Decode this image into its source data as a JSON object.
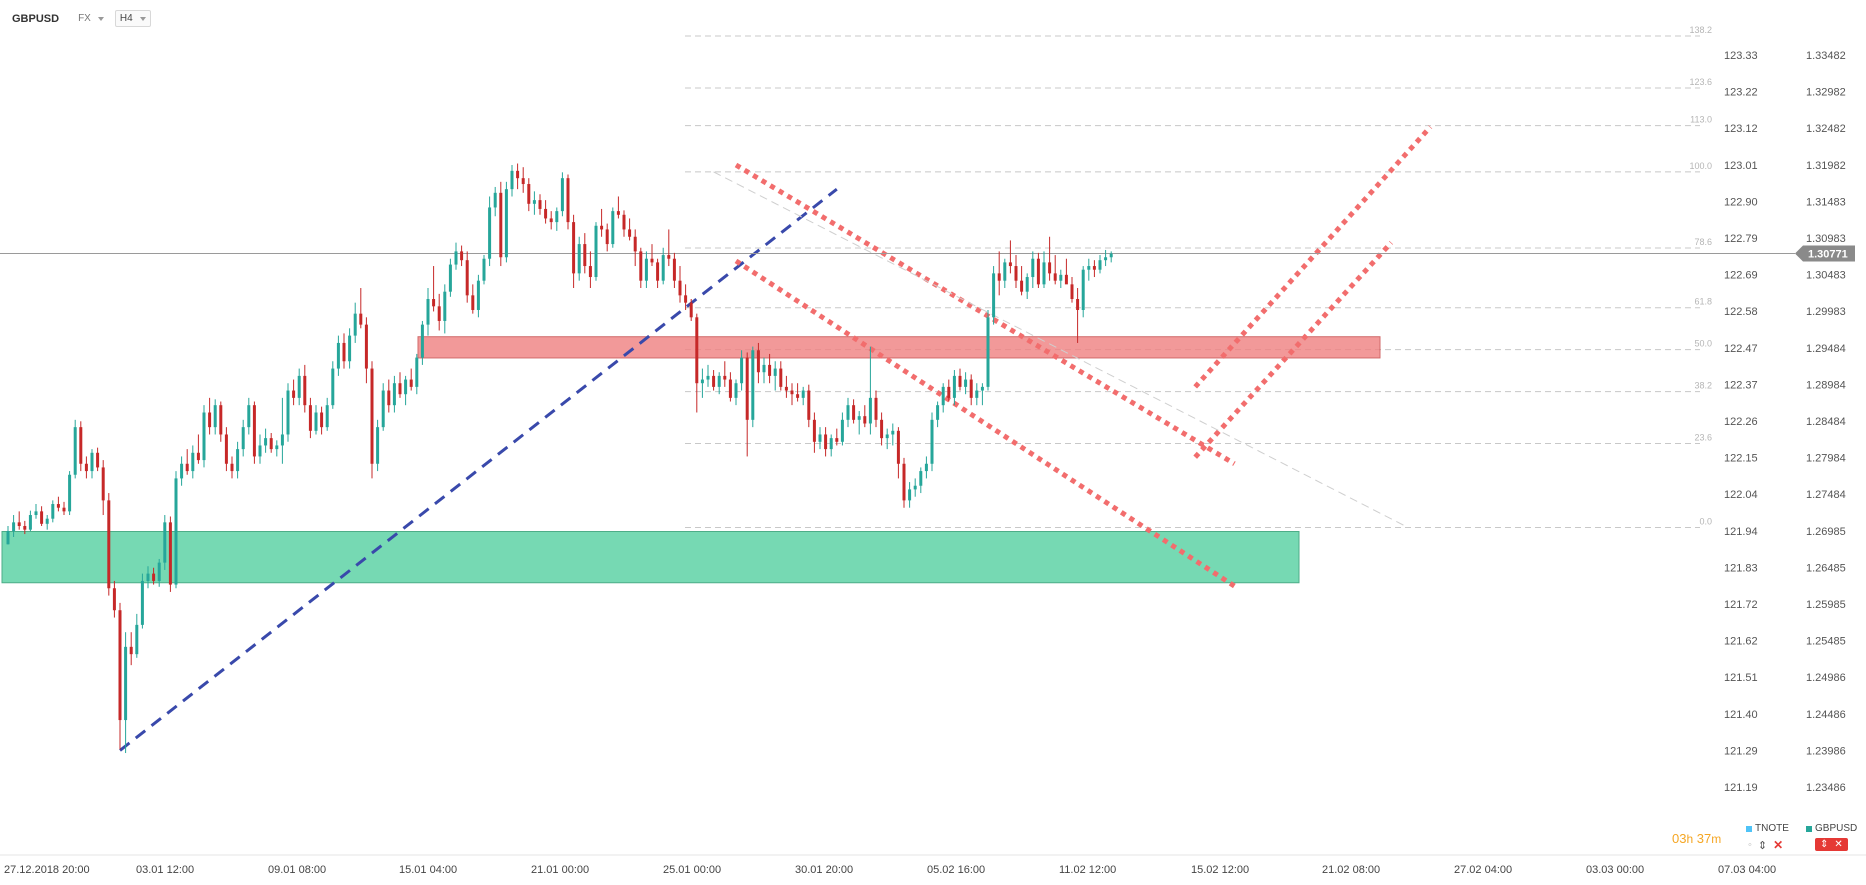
{
  "header": {
    "symbol": "GBPUSD",
    "market": "FX",
    "interval": "H4"
  },
  "timer": {
    "hours": "03",
    "h": "h",
    "minutes": "37",
    "m": "m"
  },
  "legend": {
    "tnote": "TNOTE",
    "gbpusd": "GBPUSD",
    "tnote_color": "#4fc3f7",
    "gbpusd_color": "#26a69a"
  },
  "colors": {
    "up": "#26a69a",
    "down": "#c62828",
    "support_zone": "#5fd3a6",
    "resistance_zone": "#f08080",
    "trend_blue": "#3949ab",
    "channel_red": "#f26d6d",
    "grid": "#c8c8c8",
    "current_price_bg": "#8a8a8a"
  },
  "chart_data": {
    "type": "candlestick",
    "symbol": "GBPUSD",
    "interval": "H4",
    "right_axis_ticks": [
      "1.33482",
      "1.32982",
      "1.32482",
      "1.31982",
      "1.31483",
      "1.30983",
      "1.30483",
      "1.29983",
      "1.29484",
      "1.28984",
      "1.28484",
      "1.27984",
      "1.27484",
      "1.26985",
      "1.26485",
      "1.25985",
      "1.25485",
      "1.24986",
      "1.24486",
      "1.23986",
      "1.23486"
    ],
    "left_axis_ticks": [
      "123.33",
      "123.22",
      "123.12",
      "123.01",
      "122.90",
      "122.79",
      "122.69",
      "122.58",
      "122.47",
      "122.37",
      "122.26",
      "122.15",
      "122.04",
      "121.94",
      "121.83",
      "121.72",
      "121.62",
      "121.51",
      "121.40",
      "121.29",
      "121.19"
    ],
    "x_ticks": [
      "27.12.2018  20:00",
      "03.01  12:00",
      "09.01  08:00",
      "15.01  04:00",
      "21.01  00:00",
      "25.01  00:00",
      "30.01  20:00",
      "05.02  16:00",
      "11.02  12:00",
      "15.02  12:00",
      "21.02  08:00",
      "27.02  04:00",
      "03.03  00:00",
      "07.03  04:00"
    ],
    "ylim": [
      1.22986,
      1.33682
    ],
    "current_price": "1.30771",
    "current_price_value": 1.30771,
    "fibonacci_levels": [
      {
        "label": "138.2",
        "price": 1.33742
      },
      {
        "label": "123.6",
        "price": 1.33031
      },
      {
        "label": "113.0",
        "price": 1.32517
      },
      {
        "label": "100.0",
        "price": 1.31886
      },
      {
        "label": "78.6",
        "price": 1.30847
      },
      {
        "label": "61.8",
        "price": 1.30031
      },
      {
        "label": "50.0",
        "price": 1.29458
      },
      {
        "label": "38.2",
        "price": 1.28885
      },
      {
        "label": "23.6",
        "price": 1.28176
      },
      {
        "label": "0.0",
        "price": 1.2703
      }
    ],
    "zones": [
      {
        "name": "support",
        "from_price": 1.26275,
        "to_price": 1.26975
      },
      {
        "name": "resistance",
        "from_price": 1.29345,
        "to_price": 1.29635
      }
    ],
    "candles": [
      [
        1.268,
        1.2705,
        1.268,
        1.2698
      ],
      [
        1.2698,
        1.272,
        1.269,
        1.271
      ],
      [
        1.271,
        1.2725,
        1.27,
        1.2705
      ],
      [
        1.2705,
        1.2712,
        1.2694,
        1.27
      ],
      [
        1.27,
        1.2726,
        1.2698,
        1.272
      ],
      [
        1.272,
        1.2735,
        1.2715,
        1.2725
      ],
      [
        1.2725,
        1.2732,
        1.2705,
        1.2708
      ],
      [
        1.2708,
        1.272,
        1.27,
        1.2715
      ],
      [
        1.2715,
        1.274,
        1.271,
        1.2735
      ],
      [
        1.2735,
        1.2745,
        1.2725,
        1.273
      ],
      [
        1.273,
        1.2738,
        1.272,
        1.2725
      ],
      [
        1.2725,
        1.278,
        1.272,
        1.2775
      ],
      [
        1.2775,
        1.285,
        1.277,
        1.284
      ],
      [
        1.284,
        1.2848,
        1.278,
        1.279
      ],
      [
        1.279,
        1.28,
        1.277,
        1.278
      ],
      [
        1.278,
        1.281,
        1.277,
        1.2805
      ],
      [
        1.2805,
        1.2812,
        1.278,
        1.2785
      ],
      [
        1.2785,
        1.2795,
        1.272,
        1.274
      ],
      [
        1.274,
        1.275,
        1.261,
        1.262
      ],
      [
        1.262,
        1.263,
        1.258,
        1.259
      ],
      [
        1.259,
        1.26,
        1.24,
        1.244
      ],
      [
        1.244,
        1.256,
        1.2395,
        1.254
      ],
      [
        1.254,
        1.256,
        1.2515,
        1.253
      ],
      [
        1.253,
        1.2585,
        1.2525,
        1.257
      ],
      [
        1.257,
        1.264,
        1.2565,
        1.263
      ],
      [
        1.263,
        1.265,
        1.262,
        1.264
      ],
      [
        1.264,
        1.2648,
        1.2625,
        1.263
      ],
      [
        1.263,
        1.266,
        1.2622,
        1.2655
      ],
      [
        1.2655,
        1.272,
        1.2645,
        1.271
      ],
      [
        1.271,
        1.2718,
        1.2615,
        1.2625
      ],
      [
        1.2625,
        1.278,
        1.262,
        1.277
      ],
      [
        1.277,
        1.28,
        1.276,
        1.279
      ],
      [
        1.279,
        1.281,
        1.2775,
        1.278
      ],
      [
        1.278,
        1.2815,
        1.277,
        1.2805
      ],
      [
        1.2805,
        1.283,
        1.279,
        1.2795
      ],
      [
        1.2795,
        1.287,
        1.2785,
        1.286
      ],
      [
        1.286,
        1.288,
        1.283,
        1.284
      ],
      [
        1.284,
        1.2878,
        1.283,
        1.287
      ],
      [
        1.287,
        1.2875,
        1.282,
        1.283
      ],
      [
        1.283,
        1.284,
        1.278,
        1.279
      ],
      [
        1.279,
        1.28,
        1.277,
        1.278
      ],
      [
        1.278,
        1.282,
        1.277,
        1.281
      ],
      [
        1.281,
        1.285,
        1.28,
        1.284
      ],
      [
        1.284,
        1.288,
        1.283,
        1.287
      ],
      [
        1.287,
        1.2875,
        1.279,
        1.28
      ],
      [
        1.28,
        1.283,
        1.279,
        1.2815
      ],
      [
        1.2815,
        1.2838,
        1.2805,
        1.2825
      ],
      [
        1.2825,
        1.2832,
        1.2805,
        1.281
      ],
      [
        1.281,
        1.2822,
        1.28,
        1.2815
      ],
      [
        1.2815,
        1.288,
        1.279,
        1.283
      ],
      [
        1.283,
        1.29,
        1.282,
        1.289
      ],
      [
        1.289,
        1.2905,
        1.287,
        1.288
      ],
      [
        1.288,
        1.292,
        1.287,
        1.291
      ],
      [
        1.291,
        1.2925,
        1.286,
        1.287
      ],
      [
        1.287,
        1.288,
        1.2825,
        1.2835
      ],
      [
        1.2835,
        1.287,
        1.283,
        1.286
      ],
      [
        1.286,
        1.2868,
        1.283,
        1.284
      ],
      [
        1.284,
        1.288,
        1.2835,
        1.287
      ],
      [
        1.287,
        1.293,
        1.2865,
        1.292
      ],
      [
        1.292,
        1.2965,
        1.291,
        1.2955
      ],
      [
        1.2955,
        1.2968,
        1.292,
        1.293
      ],
      [
        1.293,
        1.2975,
        1.292,
        1.2965
      ],
      [
        1.2965,
        1.301,
        1.2955,
        1.2995
      ],
      [
        1.2995,
        1.303,
        1.2975,
        1.298
      ],
      [
        1.298,
        1.299,
        1.29,
        1.292
      ],
      [
        1.292,
        1.293,
        1.277,
        1.279
      ],
      [
        1.279,
        1.285,
        1.278,
        1.284
      ],
      [
        1.284,
        1.29,
        1.2835,
        1.289
      ],
      [
        1.289,
        1.2905,
        1.286,
        1.287
      ],
      [
        1.287,
        1.291,
        1.286,
        1.29
      ],
      [
        1.29,
        1.2915,
        1.288,
        1.2885
      ],
      [
        1.2885,
        1.291,
        1.287,
        1.2905
      ],
      [
        1.2905,
        1.292,
        1.289,
        1.2895
      ],
      [
        1.2895,
        1.294,
        1.2885,
        1.2935
      ],
      [
        1.2935,
        1.2985,
        1.2925,
        1.298
      ],
      [
        1.298,
        1.303,
        1.2965,
        1.3015
      ],
      [
        1.3015,
        1.306,
        1.2998,
        1.3005
      ],
      [
        1.3005,
        1.3022,
        1.2972,
        1.2985
      ],
      [
        1.2985,
        1.3035,
        1.2968,
        1.3025
      ],
      [
        1.3025,
        1.307,
        1.3018,
        1.3062
      ],
      [
        1.3062,
        1.3092,
        1.3055,
        1.308
      ],
      [
        1.308,
        1.3088,
        1.306,
        1.3068
      ],
      [
        1.3068,
        1.308,
        1.301,
        1.302
      ],
      [
        1.302,
        1.3035,
        1.2995,
        1.3
      ],
      [
        1.3,
        1.3048,
        1.299,
        1.304
      ],
      [
        1.304,
        1.3075,
        1.3035,
        1.307
      ],
      [
        1.307,
        1.3155,
        1.306,
        1.314
      ],
      [
        1.314,
        1.3168,
        1.3128,
        1.316
      ],
      [
        1.316,
        1.3175,
        1.306,
        1.3072
      ],
      [
        1.3072,
        1.3175,
        1.3065,
        1.3165
      ],
      [
        1.3165,
        1.3198,
        1.3155,
        1.319
      ],
      [
        1.319,
        1.32,
        1.3165,
        1.318
      ],
      [
        1.318,
        1.3195,
        1.316,
        1.3172
      ],
      [
        1.3172,
        1.318,
        1.3135,
        1.3145
      ],
      [
        1.3145,
        1.3162,
        1.313,
        1.315
      ],
      [
        1.315,
        1.3158,
        1.313,
        1.3138
      ],
      [
        1.3138,
        1.315,
        1.3118,
        1.3125
      ],
      [
        1.3125,
        1.3135,
        1.311,
        1.312
      ],
      [
        1.312,
        1.314,
        1.3108,
        1.3135
      ],
      [
        1.3135,
        1.3188,
        1.3128,
        1.318
      ],
      [
        1.318,
        1.3185,
        1.311,
        1.312
      ],
      [
        1.312,
        1.313,
        1.303,
        1.305
      ],
      [
        1.305,
        1.31,
        1.304,
        1.309
      ],
      [
        1.309,
        1.3105,
        1.305,
        1.306
      ],
      [
        1.306,
        1.308,
        1.303,
        1.3045
      ],
      [
        1.3045,
        1.312,
        1.304,
        1.3115
      ],
      [
        1.3115,
        1.3138,
        1.31,
        1.311
      ],
      [
        1.311,
        1.3118,
        1.308,
        1.309
      ],
      [
        1.309,
        1.314,
        1.3085,
        1.3135
      ],
      [
        1.3135,
        1.3155,
        1.3125,
        1.313
      ],
      [
        1.313,
        1.3136,
        1.31,
        1.311
      ],
      [
        1.311,
        1.3125,
        1.3095,
        1.31
      ],
      [
        1.31,
        1.311,
        1.306,
        1.308
      ],
      [
        1.308,
        1.3085,
        1.303,
        1.304
      ],
      [
        1.304,
        1.308,
        1.303,
        1.307
      ],
      [
        1.307,
        1.309,
        1.306,
        1.3065
      ],
      [
        1.3065,
        1.307,
        1.303,
        1.304
      ],
      [
        1.304,
        1.3085,
        1.3035,
        1.3075
      ],
      [
        1.3075,
        1.311,
        1.306,
        1.307
      ],
      [
        1.307,
        1.3078,
        1.303,
        1.304
      ],
      [
        1.304,
        1.306,
        1.301,
        1.302
      ],
      [
        1.302,
        1.3035,
        1.3,
        1.301
      ],
      [
        1.301,
        1.3015,
        1.2985,
        1.299
      ],
      [
        1.299,
        1.2995,
        1.286,
        1.29
      ],
      [
        1.29,
        1.292,
        1.288,
        1.2905
      ],
      [
        1.2905,
        1.2925,
        1.2895,
        1.291
      ],
      [
        1.291,
        1.2918,
        1.289,
        1.2895
      ],
      [
        1.2895,
        1.2915,
        1.2885,
        1.291
      ],
      [
        1.291,
        1.293,
        1.2895,
        1.2905
      ],
      [
        1.2905,
        1.2915,
        1.2875,
        1.288
      ],
      [
        1.288,
        1.2905,
        1.287,
        1.29
      ],
      [
        1.29,
        1.2945,
        1.289,
        1.2935
      ],
      [
        1.2935,
        1.2942,
        1.28,
        1.285
      ],
      [
        1.285,
        1.295,
        1.284,
        1.2945
      ],
      [
        1.2945,
        1.2955,
        1.29,
        1.2915
      ],
      [
        1.2915,
        1.2935,
        1.29,
        1.2925
      ],
      [
        1.2925,
        1.294,
        1.29,
        1.291
      ],
      [
        1.291,
        1.293,
        1.289,
        1.292
      ],
      [
        1.292,
        1.293,
        1.289,
        1.2895
      ],
      [
        1.2895,
        1.291,
        1.288,
        1.289
      ],
      [
        1.289,
        1.29,
        1.287,
        1.2885
      ],
      [
        1.2885,
        1.29,
        1.2875,
        1.288
      ],
      [
        1.288,
        1.2895,
        1.287,
        1.289
      ],
      [
        1.289,
        1.2898,
        1.284,
        1.285
      ],
      [
        1.285,
        1.286,
        1.2805,
        1.282
      ],
      [
        1.282,
        1.284,
        1.281,
        1.283
      ],
      [
        1.283,
        1.284,
        1.28,
        1.281
      ],
      [
        1.281,
        1.283,
        1.28,
        1.2825
      ],
      [
        1.2825,
        1.2838,
        1.2815,
        1.282
      ],
      [
        1.282,
        1.286,
        1.2815,
        1.285
      ],
      [
        1.285,
        1.288,
        1.284,
        1.287
      ],
      [
        1.287,
        1.2878,
        1.2845,
        1.285
      ],
      [
        1.285,
        1.2862,
        1.283,
        1.2855
      ],
      [
        1.2855,
        1.287,
        1.284,
        1.2845
      ],
      [
        1.2845,
        1.295,
        1.283,
        1.288
      ],
      [
        1.288,
        1.289,
        1.284,
        1.285
      ],
      [
        1.285,
        1.286,
        1.2815,
        1.2825
      ],
      [
        1.2825,
        1.2838,
        1.281,
        1.283
      ],
      [
        1.283,
        1.2845,
        1.2815,
        1.2835
      ],
      [
        1.2835,
        1.284,
        1.277,
        1.279
      ],
      [
        1.279,
        1.2798,
        1.273,
        1.274
      ],
      [
        1.274,
        1.2765,
        1.273,
        1.2755
      ],
      [
        1.2755,
        1.277,
        1.2745,
        1.276
      ],
      [
        1.276,
        1.2785,
        1.275,
        1.278
      ],
      [
        1.278,
        1.28,
        1.277,
        1.279
      ],
      [
        1.279,
        1.286,
        1.278,
        1.285
      ],
      [
        1.285,
        1.2875,
        1.284,
        1.287
      ],
      [
        1.287,
        1.29,
        1.286,
        1.2895
      ],
      [
        1.2895,
        1.2905,
        1.2875,
        1.288
      ],
      [
        1.288,
        1.2918,
        1.287,
        1.291
      ],
      [
        1.291,
        1.292,
        1.289,
        1.2895
      ],
      [
        1.2895,
        1.2915,
        1.2885,
        1.2905
      ],
      [
        1.2905,
        1.2912,
        1.287,
        1.288
      ],
      [
        1.288,
        1.29,
        1.287,
        1.289
      ],
      [
        1.289,
        1.29,
        1.287,
        1.2895
      ],
      [
        1.2895,
        1.3,
        1.289,
        1.299
      ],
      [
        1.299,
        1.306,
        1.298,
        1.305
      ],
      [
        1.305,
        1.308,
        1.302,
        1.304
      ],
      [
        1.304,
        1.307,
        1.303,
        1.3065
      ],
      [
        1.3065,
        1.3095,
        1.305,
        1.306
      ],
      [
        1.306,
        1.3075,
        1.303,
        1.304
      ],
      [
        1.304,
        1.306,
        1.302,
        1.3025
      ],
      [
        1.3025,
        1.305,
        1.3015,
        1.3045
      ],
      [
        1.3045,
        1.308,
        1.303,
        1.307
      ],
      [
        1.307,
        1.3078,
        1.303,
        1.3035
      ],
      [
        1.3035,
        1.308,
        1.303,
        1.3065
      ],
      [
        1.3065,
        1.31,
        1.304,
        1.305
      ],
      [
        1.305,
        1.3075,
        1.3035,
        1.304
      ],
      [
        1.304,
        1.3055,
        1.303,
        1.3048
      ],
      [
        1.3048,
        1.307,
        1.304,
        1.3035
      ],
      [
        1.3035,
        1.3045,
        1.301,
        1.3015
      ],
      [
        1.3015,
        1.303,
        1.2955,
        1.3
      ],
      [
        1.3,
        1.306,
        1.299,
        1.3055
      ],
      [
        1.3055,
        1.307,
        1.304,
        1.306
      ],
      [
        1.306,
        1.3068,
        1.3045,
        1.3055
      ],
      [
        1.3055,
        1.3075,
        1.305,
        1.3068
      ],
      [
        1.3068,
        1.3082,
        1.306,
        1.3072
      ],
      [
        1.3072,
        1.308,
        1.3065,
        1.3077
      ]
    ],
    "trendlines": [
      {
        "name": "blue-uptrend",
        "style": "dashed",
        "from": {
          "bar": 20,
          "price": 1.23986
        },
        "to": {
          "bar": 148,
          "price": 1.3165
        }
      },
      {
        "name": "red-channel-upper",
        "style": "dotted",
        "from": {
          "bar": 130,
          "price": 1.3198
        },
        "to": {
          "bar": 219,
          "price": 1.279
        }
      },
      {
        "name": "red-channel-lower",
        "style": "dotted",
        "from": {
          "bar": 130,
          "price": 1.3067
        },
        "to": {
          "bar": 219,
          "price": 1.2623
        }
      },
      {
        "name": "red-rising-upper",
        "style": "dotted",
        "from": {
          "bar": 212,
          "price": 1.2895
        },
        "to": {
          "bar": 254,
          "price": 1.325
        }
      },
      {
        "name": "red-rising-lower",
        "style": "dotted",
        "from": {
          "bar": 212,
          "price": 1.2799
        },
        "to": {
          "bar": 247,
          "price": 1.3092
        }
      },
      {
        "name": "grey-fib-diagonal",
        "style": "dashed",
        "from": {
          "bar": 126,
          "price": 1.31886
        },
        "to": {
          "bar": 250,
          "price": 1.2703
        }
      }
    ]
  }
}
